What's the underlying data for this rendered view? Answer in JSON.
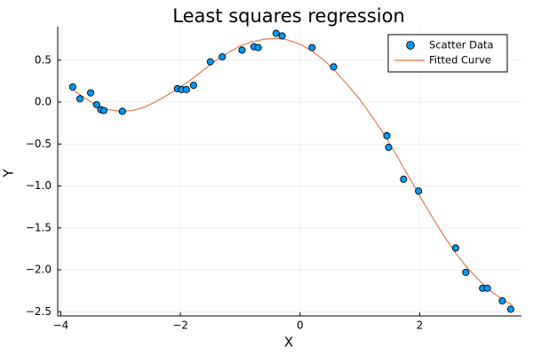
{
  "chart_data": {
    "type": "scatter",
    "title": "Least squares regression",
    "xlabel": "X",
    "ylabel": "Y",
    "xlim": [
      -4.05,
      3.7
    ],
    "ylim": [
      -2.55,
      0.9
    ],
    "x_ticks": [
      -4,
      -2,
      0,
      2
    ],
    "x_tick_labels": [
      "−4",
      "−2",
      "0",
      "2"
    ],
    "y_ticks": [
      0.5,
      0.0,
      -0.5,
      -1.0,
      -1.5,
      -2.0,
      -2.5
    ],
    "y_tick_labels": [
      "0.5",
      "0.0",
      "−0.5",
      "−1.0",
      "−1.5",
      "−2.0",
      "−2.5"
    ],
    "grid": true,
    "legend_position": "top-right",
    "series": [
      {
        "name": "Scatter Data",
        "kind": "scatter",
        "color": "#009af9",
        "points": [
          [
            -3.8,
            0.18
          ],
          [
            -3.68,
            0.04
          ],
          [
            -3.5,
            0.11
          ],
          [
            -3.4,
            -0.03
          ],
          [
            -3.33,
            -0.09
          ],
          [
            -3.28,
            -0.1
          ],
          [
            -2.97,
            -0.11
          ],
          [
            -2.05,
            0.16
          ],
          [
            -1.98,
            0.15
          ],
          [
            -1.9,
            0.15
          ],
          [
            -1.78,
            0.2
          ],
          [
            -1.5,
            0.48
          ],
          [
            -1.3,
            0.54
          ],
          [
            -0.97,
            0.62
          ],
          [
            -0.77,
            0.66
          ],
          [
            -0.7,
            0.65
          ],
          [
            -0.4,
            0.82
          ],
          [
            -0.3,
            0.79
          ],
          [
            0.2,
            0.65
          ],
          [
            0.56,
            0.42
          ],
          [
            1.45,
            -0.4
          ],
          [
            1.48,
            -0.54
          ],
          [
            1.73,
            -0.92
          ],
          [
            1.98,
            -1.06
          ],
          [
            2.6,
            -1.74
          ],
          [
            2.77,
            -2.03
          ],
          [
            3.05,
            -2.22
          ],
          [
            3.13,
            -2.22
          ],
          [
            3.38,
            -2.37
          ],
          [
            3.52,
            -2.47
          ]
        ]
      },
      {
        "name": "Fitted Curve",
        "kind": "line",
        "color": "#e26f46",
        "points": [
          [
            -3.8,
            0.15
          ],
          [
            -3.6,
            0.05
          ],
          [
            -3.4,
            -0.04
          ],
          [
            -3.2,
            -0.09
          ],
          [
            -3.0,
            -0.11
          ],
          [
            -2.8,
            -0.1
          ],
          [
            -2.6,
            -0.06
          ],
          [
            -2.4,
            0.01
          ],
          [
            -2.2,
            0.09
          ],
          [
            -2.0,
            0.18
          ],
          [
            -1.8,
            0.28
          ],
          [
            -1.6,
            0.39
          ],
          [
            -1.4,
            0.5
          ],
          [
            -1.2,
            0.59
          ],
          [
            -1.0,
            0.67
          ],
          [
            -0.8,
            0.72
          ],
          [
            -0.6,
            0.75
          ],
          [
            -0.4,
            0.76
          ],
          [
            -0.3,
            0.755
          ],
          [
            -0.2,
            0.74
          ],
          [
            0.0,
            0.69
          ],
          [
            0.2,
            0.61
          ],
          [
            0.4,
            0.5
          ],
          [
            0.6,
            0.36
          ],
          [
            0.8,
            0.2
          ],
          [
            1.0,
            0.03
          ],
          [
            1.2,
            -0.17
          ],
          [
            1.4,
            -0.38
          ],
          [
            1.6,
            -0.62
          ],
          [
            1.8,
            -0.87
          ],
          [
            2.0,
            -1.12
          ],
          [
            2.2,
            -1.36
          ],
          [
            2.4,
            -1.59
          ],
          [
            2.6,
            -1.8
          ],
          [
            2.8,
            -1.98
          ],
          [
            3.0,
            -2.13
          ],
          [
            3.2,
            -2.26
          ],
          [
            3.4,
            -2.36
          ],
          [
            3.55,
            -2.42
          ]
        ]
      }
    ]
  }
}
